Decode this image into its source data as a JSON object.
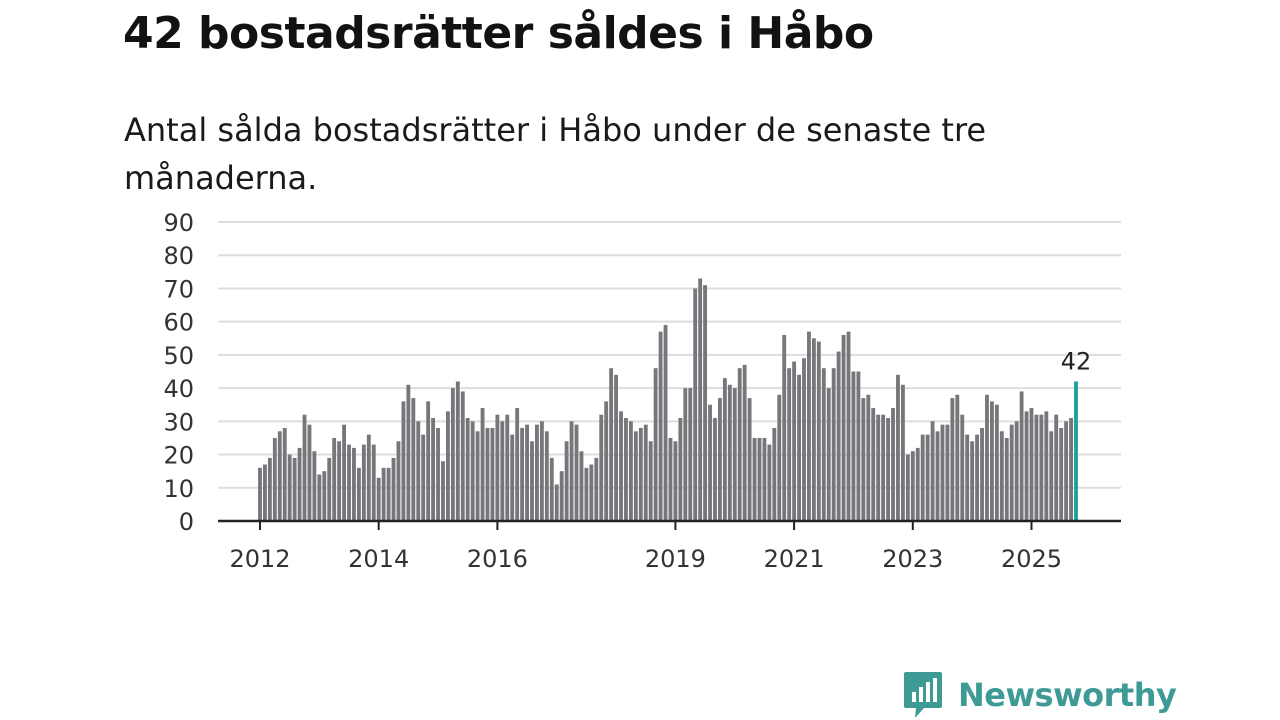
{
  "title": "42 bostadsrätter såldes i Håbo",
  "subtitle": "Antal sålda bostadsrätter i Håbo under de senaste tre månaderna.",
  "logo": {
    "text": "Newsworthy",
    "icon": "newsworthy-logo-icon"
  },
  "colors": {
    "bar": "#77767b",
    "highlight": "#1ba39a",
    "grid": "#dddddd",
    "axis": "#222222",
    "brand": "#3d9a95"
  },
  "chart_data": {
    "type": "bar",
    "title": "Antal sålda bostadsrätter i Håbo under de senaste tre månaderna.",
    "xlabel": "",
    "ylabel": "",
    "ylim": [
      0,
      90
    ],
    "yticks": [
      "0",
      "10",
      "20",
      "30",
      "40",
      "50",
      "60",
      "70",
      "80",
      "90"
    ],
    "xticks": [
      "2012",
      "2014",
      "2016",
      "2019",
      "2021",
      "2023",
      "2025"
    ],
    "grid": true,
    "legend": "none",
    "highlight_label": "42",
    "values": [
      16,
      17,
      19,
      25,
      27,
      28,
      20,
      19,
      22,
      32,
      29,
      21,
      14,
      15,
      19,
      25,
      24,
      29,
      23,
      22,
      16,
      23,
      26,
      23,
      13,
      16,
      16,
      19,
      24,
      36,
      41,
      37,
      30,
      26,
      36,
      31,
      28,
      18,
      33,
      40,
      42,
      39,
      31,
      30,
      27,
      34,
      28,
      28,
      32,
      30,
      32,
      26,
      34,
      28,
      29,
      24,
      29,
      30,
      27,
      19,
      11,
      15,
      24,
      30,
      29,
      21,
      16,
      17,
      19,
      32,
      36,
      46,
      44,
      33,
      31,
      30,
      27,
      28,
      29,
      24,
      46,
      57,
      59,
      25,
      24,
      31,
      40,
      40,
      70,
      73,
      71,
      35,
      31,
      37,
      43,
      41,
      40,
      46,
      47,
      37,
      25,
      25,
      25,
      23,
      28,
      38,
      56,
      46,
      48,
      44,
      49,
      57,
      55,
      54,
      46,
      40,
      46,
      51,
      56,
      57,
      45,
      45,
      37,
      38,
      34,
      32,
      32,
      31,
      34,
      44,
      41,
      20,
      21,
      22,
      26,
      26,
      30,
      27,
      29,
      29,
      37,
      38,
      32,
      26,
      24,
      26,
      28,
      38,
      36,
      35,
      27,
      25,
      29,
      30,
      39,
      33,
      34,
      32,
      32,
      33,
      27,
      32,
      28,
      30,
      31,
      42
    ]
  }
}
